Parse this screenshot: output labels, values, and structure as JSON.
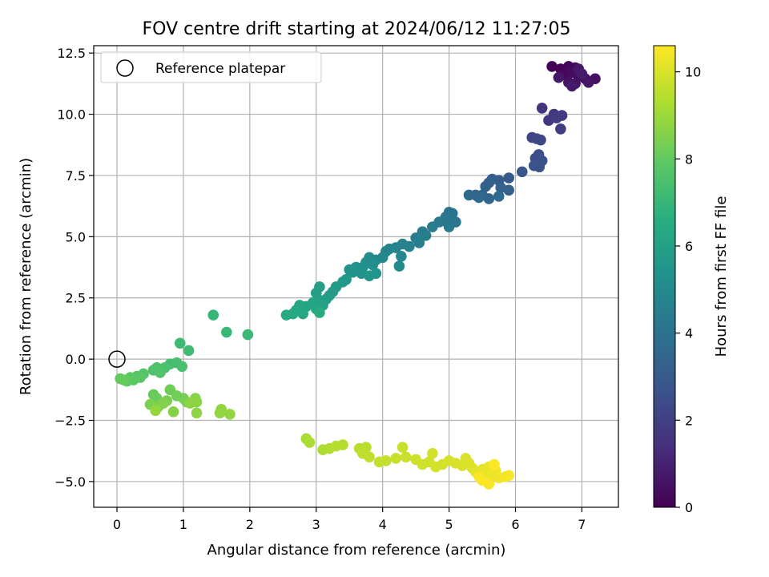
{
  "chart_data": {
    "type": "scatter",
    "title": "FOV centre drift starting at 2024/06/12 11:27:05",
    "xlabel": "Angular distance from reference (arcmin)",
    "ylabel": "Rotation from reference (arcmin)",
    "xlim": [
      -0.35,
      7.55
    ],
    "ylim": [
      -6.05,
      12.8
    ],
    "xticks": [
      0,
      1,
      2,
      3,
      4,
      5,
      6,
      7
    ],
    "xtick_labels": [
      "0",
      "1",
      "2",
      "3",
      "4",
      "5",
      "6",
      "7"
    ],
    "yticks": [
      -5.0,
      -2.5,
      0.0,
      2.5,
      5.0,
      7.5,
      10.0,
      12.5
    ],
    "ytick_labels": [
      "−5.0",
      "−2.5",
      "0.0",
      "2.5",
      "5.0",
      "7.5",
      "10.0",
      "12.5"
    ],
    "grid": true,
    "legend": {
      "position": "upper-left",
      "entries": [
        "Reference platepar"
      ]
    },
    "reference_point": {
      "x": 0.0,
      "y": 0.0
    },
    "colorbar": {
      "label": "Hours from first FF file",
      "range": [
        0,
        10.6
      ],
      "ticks": [
        0,
        2,
        4,
        6,
        8,
        10
      ],
      "tick_labels": [
        "0",
        "2",
        "4",
        "6",
        "8",
        "10"
      ],
      "colormap": "viridis"
    },
    "series": [
      {
        "points": [
          {
            "x": 6.55,
            "y": 11.95,
            "t": 0.05
          },
          {
            "x": 6.68,
            "y": 11.85,
            "t": 0.1
          },
          {
            "x": 6.8,
            "y": 11.95,
            "t": 0.15
          },
          {
            "x": 6.9,
            "y": 11.9,
            "t": 0.2
          },
          {
            "x": 6.75,
            "y": 11.6,
            "t": 0.25
          },
          {
            "x": 6.85,
            "y": 11.7,
            "t": 0.3
          },
          {
            "x": 6.95,
            "y": 11.55,
            "t": 0.35
          },
          {
            "x": 7.05,
            "y": 11.45,
            "t": 0.4
          },
          {
            "x": 7.2,
            "y": 11.45,
            "t": 0.45
          },
          {
            "x": 6.8,
            "y": 11.3,
            "t": 0.5
          },
          {
            "x": 6.9,
            "y": 11.25,
            "t": 0.55
          },
          {
            "x": 7.1,
            "y": 11.3,
            "t": 0.6
          },
          {
            "x": 6.65,
            "y": 11.5,
            "t": 0.65
          },
          {
            "x": 6.95,
            "y": 11.85,
            "t": 0.7
          },
          {
            "x": 6.85,
            "y": 11.15,
            "t": 0.75
          },
          {
            "x": 7.0,
            "y": 11.65,
            "t": 0.8
          },
          {
            "x": 6.4,
            "y": 10.25,
            "t": 1.6
          },
          {
            "x": 6.5,
            "y": 9.75,
            "t": 1.7
          },
          {
            "x": 6.58,
            "y": 10.0,
            "t": 1.75
          },
          {
            "x": 6.7,
            "y": 9.95,
            "t": 1.8
          },
          {
            "x": 6.62,
            "y": 9.85,
            "t": 1.85
          },
          {
            "x": 6.68,
            "y": 9.4,
            "t": 1.9
          },
          {
            "x": 6.25,
            "y": 9.05,
            "t": 2.2
          },
          {
            "x": 6.32,
            "y": 9.0,
            "t": 2.25
          },
          {
            "x": 6.38,
            "y": 8.95,
            "t": 2.3
          },
          {
            "x": 6.3,
            "y": 8.2,
            "t": 2.5
          },
          {
            "x": 6.35,
            "y": 8.35,
            "t": 2.55
          },
          {
            "x": 6.4,
            "y": 8.1,
            "t": 2.6
          },
          {
            "x": 6.28,
            "y": 7.9,
            "t": 2.65
          },
          {
            "x": 6.36,
            "y": 7.85,
            "t": 2.7
          },
          {
            "x": 6.1,
            "y": 7.65,
            "t": 2.8
          },
          {
            "x": 5.9,
            "y": 7.4,
            "t": 3.0
          },
          {
            "x": 5.75,
            "y": 7.3,
            "t": 3.1
          },
          {
            "x": 5.65,
            "y": 7.35,
            "t": 3.15
          },
          {
            "x": 5.6,
            "y": 7.2,
            "t": 3.2
          },
          {
            "x": 5.55,
            "y": 7.05,
            "t": 3.25
          },
          {
            "x": 5.78,
            "y": 7.0,
            "t": 3.3
          },
          {
            "x": 5.9,
            "y": 6.9,
            "t": 3.35
          },
          {
            "x": 5.5,
            "y": 6.7,
            "t": 3.4
          },
          {
            "x": 5.6,
            "y": 6.55,
            "t": 3.45
          },
          {
            "x": 5.4,
            "y": 6.7,
            "t": 3.5
          },
          {
            "x": 5.3,
            "y": 6.7,
            "t": 3.55
          },
          {
            "x": 5.45,
            "y": 6.6,
            "t": 3.6
          },
          {
            "x": 5.75,
            "y": 6.65,
            "t": 3.65
          },
          {
            "x": 5.0,
            "y": 6.0,
            "t": 4.0
          },
          {
            "x": 5.05,
            "y": 5.95,
            "t": 4.05
          },
          {
            "x": 4.95,
            "y": 5.8,
            "t": 4.1
          },
          {
            "x": 5.1,
            "y": 5.6,
            "t": 4.15
          },
          {
            "x": 4.98,
            "y": 5.55,
            "t": 4.2
          },
          {
            "x": 5.0,
            "y": 5.4,
            "t": 4.25
          },
          {
            "x": 4.85,
            "y": 5.6,
            "t": 4.3
          },
          {
            "x": 4.75,
            "y": 5.4,
            "t": 4.35
          },
          {
            "x": 4.6,
            "y": 5.2,
            "t": 4.4
          },
          {
            "x": 4.65,
            "y": 5.05,
            "t": 4.45
          },
          {
            "x": 4.5,
            "y": 4.95,
            "t": 4.5
          },
          {
            "x": 4.55,
            "y": 4.75,
            "t": 4.55
          },
          {
            "x": 4.4,
            "y": 4.6,
            "t": 4.6
          },
          {
            "x": 4.3,
            "y": 4.7,
            "t": 4.65
          },
          {
            "x": 4.2,
            "y": 4.55,
            "t": 4.7
          },
          {
            "x": 4.1,
            "y": 4.5,
            "t": 4.75
          },
          {
            "x": 4.05,
            "y": 4.4,
            "t": 4.8
          },
          {
            "x": 4.28,
            "y": 4.2,
            "t": 4.85
          },
          {
            "x": 4.0,
            "y": 4.15,
            "t": 4.9
          },
          {
            "x": 4.25,
            "y": 3.8,
            "t": 4.95
          },
          {
            "x": 3.9,
            "y": 4.05,
            "t": 5.0
          },
          {
            "x": 3.8,
            "y": 4.15,
            "t": 5.1
          },
          {
            "x": 3.75,
            "y": 3.95,
            "t": 5.15
          },
          {
            "x": 3.85,
            "y": 3.85,
            "t": 5.2
          },
          {
            "x": 3.7,
            "y": 3.75,
            "t": 5.25
          },
          {
            "x": 3.6,
            "y": 3.75,
            "t": 5.3
          },
          {
            "x": 3.5,
            "y": 3.65,
            "t": 5.35
          },
          {
            "x": 3.55,
            "y": 3.55,
            "t": 5.4
          },
          {
            "x": 3.68,
            "y": 3.5,
            "t": 5.45
          },
          {
            "x": 3.9,
            "y": 3.5,
            "t": 5.5
          },
          {
            "x": 3.8,
            "y": 3.4,
            "t": 5.55
          },
          {
            "x": 3.45,
            "y": 3.25,
            "t": 5.6
          },
          {
            "x": 3.4,
            "y": 3.15,
            "t": 5.65
          },
          {
            "x": 3.3,
            "y": 2.95,
            "t": 5.7
          },
          {
            "x": 3.25,
            "y": 2.75,
            "t": 5.75
          },
          {
            "x": 3.2,
            "y": 2.6,
            "t": 5.8
          },
          {
            "x": 3.15,
            "y": 2.45,
            "t": 5.85
          },
          {
            "x": 3.05,
            "y": 2.95,
            "t": 5.9
          },
          {
            "x": 3.0,
            "y": 2.7,
            "t": 5.95
          },
          {
            "x": 3.05,
            "y": 2.4,
            "t": 6.0
          },
          {
            "x": 3.1,
            "y": 2.2,
            "t": 6.05
          },
          {
            "x": 2.95,
            "y": 2.3,
            "t": 6.1
          },
          {
            "x": 2.85,
            "y": 2.15,
            "t": 6.15
          },
          {
            "x": 3.0,
            "y": 2.05,
            "t": 6.2
          },
          {
            "x": 2.75,
            "y": 2.2,
            "t": 6.25
          },
          {
            "x": 2.7,
            "y": 2.0,
            "t": 6.3
          },
          {
            "x": 2.8,
            "y": 1.85,
            "t": 6.35
          },
          {
            "x": 2.65,
            "y": 1.85,
            "t": 6.4
          },
          {
            "x": 2.55,
            "y": 1.8,
            "t": 6.45
          },
          {
            "x": 3.05,
            "y": 1.9,
            "t": 6.5
          },
          {
            "x": 1.45,
            "y": 1.8,
            "t": 7.0
          },
          {
            "x": 1.65,
            "y": 1.1,
            "t": 7.05
          },
          {
            "x": 1.97,
            "y": 1.0,
            "t": 7.1
          },
          {
            "x": 0.95,
            "y": 0.65,
            "t": 7.2
          },
          {
            "x": 1.08,
            "y": 0.35,
            "t": 7.25
          },
          {
            "x": 0.8,
            "y": -0.2,
            "t": 7.35
          },
          {
            "x": 0.9,
            "y": -0.15,
            "t": 7.4
          },
          {
            "x": 0.98,
            "y": -0.3,
            "t": 7.45
          },
          {
            "x": 0.72,
            "y": -0.35,
            "t": 7.5
          },
          {
            "x": 0.6,
            "y": -0.35,
            "t": 7.55
          },
          {
            "x": 0.55,
            "y": -0.45,
            "t": 7.6
          },
          {
            "x": 0.65,
            "y": -0.55,
            "t": 7.65
          },
          {
            "x": 0.4,
            "y": -0.6,
            "t": 7.7
          },
          {
            "x": 0.3,
            "y": -0.7,
            "t": 7.75
          },
          {
            "x": 0.35,
            "y": -0.75,
            "t": 7.8
          },
          {
            "x": 0.2,
            "y": -0.75,
            "t": 7.85
          },
          {
            "x": 0.25,
            "y": -0.85,
            "t": 7.9
          },
          {
            "x": 0.15,
            "y": -0.9,
            "t": 7.95
          },
          {
            "x": 0.05,
            "y": -0.8,
            "t": 8.0
          },
          {
            "x": 0.1,
            "y": -0.85,
            "t": 8.05
          },
          {
            "x": 0.55,
            "y": -1.45,
            "t": 8.1
          },
          {
            "x": 0.6,
            "y": -1.6,
            "t": 8.15
          },
          {
            "x": 0.8,
            "y": -1.25,
            "t": 8.2
          },
          {
            "x": 0.9,
            "y": -1.5,
            "t": 8.25
          },
          {
            "x": 1.0,
            "y": -1.6,
            "t": 8.3
          },
          {
            "x": 1.05,
            "y": -1.75,
            "t": 8.35
          },
          {
            "x": 0.75,
            "y": -1.7,
            "t": 8.4
          },
          {
            "x": 0.5,
            "y": -1.85,
            "t": 8.45
          },
          {
            "x": 0.62,
            "y": -1.95,
            "t": 8.5
          },
          {
            "x": 0.7,
            "y": -1.8,
            "t": 8.55
          },
          {
            "x": 0.85,
            "y": -2.15,
            "t": 8.6
          },
          {
            "x": 1.18,
            "y": -1.6,
            "t": 8.65
          },
          {
            "x": 1.2,
            "y": -1.75,
            "t": 8.7
          },
          {
            "x": 1.1,
            "y": -1.8,
            "t": 8.72
          },
          {
            "x": 1.2,
            "y": -2.2,
            "t": 8.75
          },
          {
            "x": 1.55,
            "y": -2.2,
            "t": 8.8
          },
          {
            "x": 1.57,
            "y": -2.05,
            "t": 8.82
          },
          {
            "x": 1.7,
            "y": -2.25,
            "t": 8.85
          },
          {
            "x": 0.58,
            "y": -2.1,
            "t": 8.88
          },
          {
            "x": 2.85,
            "y": -3.25,
            "t": 9.2
          },
          {
            "x": 2.9,
            "y": -3.4,
            "t": 9.25
          },
          {
            "x": 3.1,
            "y": -3.7,
            "t": 9.3
          },
          {
            "x": 3.2,
            "y": -3.65,
            "t": 9.35
          },
          {
            "x": 3.4,
            "y": -3.5,
            "t": 9.4
          },
          {
            "x": 3.3,
            "y": -3.55,
            "t": 9.42
          },
          {
            "x": 3.65,
            "y": -3.65,
            "t": 9.45
          },
          {
            "x": 3.75,
            "y": -3.6,
            "t": 9.5
          },
          {
            "x": 3.7,
            "y": -3.85,
            "t": 9.55
          },
          {
            "x": 3.8,
            "y": -4.0,
            "t": 9.6
          },
          {
            "x": 3.95,
            "y": -4.2,
            "t": 9.62
          },
          {
            "x": 4.05,
            "y": -4.15,
            "t": 9.65
          },
          {
            "x": 4.2,
            "y": -4.05,
            "t": 9.7
          },
          {
            "x": 4.3,
            "y": -3.6,
            "t": 9.72
          },
          {
            "x": 4.35,
            "y": -4.0,
            "t": 9.75
          },
          {
            "x": 4.5,
            "y": -4.1,
            "t": 9.8
          },
          {
            "x": 4.6,
            "y": -4.3,
            "t": 9.82
          },
          {
            "x": 4.7,
            "y": -4.2,
            "t": 9.85
          },
          {
            "x": 4.75,
            "y": -3.85,
            "t": 9.88
          },
          {
            "x": 4.8,
            "y": -4.4,
            "t": 9.9
          },
          {
            "x": 4.9,
            "y": -4.3,
            "t": 9.92
          },
          {
            "x": 5.0,
            "y": -4.15,
            "t": 9.95
          },
          {
            "x": 5.1,
            "y": -4.25,
            "t": 9.98
          },
          {
            "x": 5.2,
            "y": -4.35,
            "t": 10.0
          },
          {
            "x": 5.25,
            "y": -4.05,
            "t": 10.02
          },
          {
            "x": 5.3,
            "y": -4.25,
            "t": 10.05
          },
          {
            "x": 5.35,
            "y": -4.45,
            "t": 10.08
          },
          {
            "x": 5.4,
            "y": -4.6,
            "t": 10.12
          },
          {
            "x": 5.5,
            "y": -4.5,
            "t": 10.18
          },
          {
            "x": 5.55,
            "y": -4.65,
            "t": 10.22
          },
          {
            "x": 5.6,
            "y": -4.4,
            "t": 10.26
          },
          {
            "x": 5.65,
            "y": -4.75,
            "t": 10.3
          },
          {
            "x": 5.7,
            "y": -4.55,
            "t": 10.34
          },
          {
            "x": 5.75,
            "y": -4.85,
            "t": 10.38
          },
          {
            "x": 5.85,
            "y": -4.8,
            "t": 10.42
          },
          {
            "x": 5.9,
            "y": -4.75,
            "t": 10.46
          },
          {
            "x": 5.6,
            "y": -5.1,
            "t": 10.5
          },
          {
            "x": 5.45,
            "y": -4.8,
            "t": 10.53
          },
          {
            "x": 5.5,
            "y": -4.95,
            "t": 10.56
          },
          {
            "x": 5.68,
            "y": -4.3,
            "t": 10.6
          }
        ]
      }
    ]
  }
}
